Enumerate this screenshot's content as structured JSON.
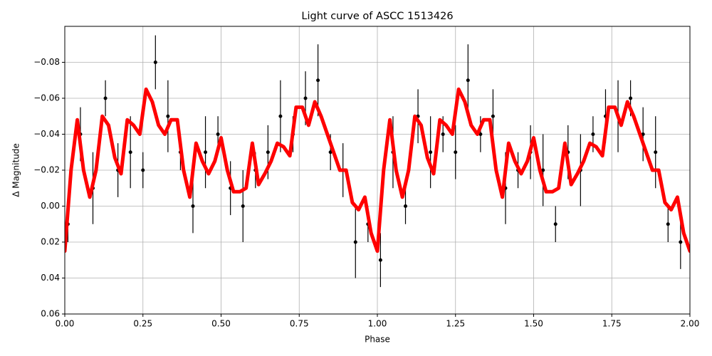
{
  "chart_data": {
    "type": "errorbar-line",
    "title": "Light curve of ASCC 1513426",
    "xlabel": "Phase",
    "ylabel": "Δ Magnitude",
    "xlim": [
      0,
      2
    ],
    "ylim": [
      0.06,
      -0.1
    ],
    "xticks": [
      {
        "value": 0,
        "label": "0.00"
      },
      {
        "value": 0.25,
        "label": "0.25"
      },
      {
        "value": 0.5,
        "label": "0.50"
      },
      {
        "value": 0.75,
        "label": "0.75"
      },
      {
        "value": 1,
        "label": "1.00"
      },
      {
        "value": 1.25,
        "label": "1.25"
      },
      {
        "value": 1.5,
        "label": "1.50"
      },
      {
        "value": 1.75,
        "label": "1.75"
      },
      {
        "value": 2,
        "label": "2.00"
      }
    ],
    "yticks": [
      {
        "value": -0.08,
        "label": "−0.08"
      },
      {
        "value": -0.06,
        "label": "−0.06"
      },
      {
        "value": -0.04,
        "label": "−0.04"
      },
      {
        "value": -0.02,
        "label": "−0.02"
      },
      {
        "value": 0,
        "label": "0.00"
      },
      {
        "value": 0.02,
        "label": "0.02"
      },
      {
        "value": 0.04,
        "label": "0.04"
      },
      {
        "value": 0.06,
        "label": "0.06"
      }
    ],
    "grid": true,
    "series": [
      {
        "kind": "errorbar",
        "color": "#000000",
        "x": [
          0.01,
          0.05,
          0.09,
          0.13,
          0.17,
          0.21,
          0.25,
          0.29,
          0.33,
          0.37,
          0.41,
          0.45,
          0.49,
          0.53,
          0.57,
          0.61,
          0.65,
          0.69,
          0.73,
          0.77,
          0.81,
          0.85,
          0.89,
          0.93,
          0.97,
          1.01,
          1.05,
          1.09,
          1.13,
          1.17,
          1.21,
          1.25,
          1.29,
          1.33,
          1.37,
          1.41,
          1.45,
          1.49,
          1.53,
          1.57,
          1.61,
          1.65,
          1.69,
          1.73,
          1.77,
          1.81,
          1.85,
          1.89,
          1.93,
          1.97
        ],
        "values": [
          0.01,
          -0.04,
          -0.01,
          -0.06,
          -0.02,
          -0.03,
          -0.02,
          -0.08,
          -0.05,
          -0.03,
          0,
          -0.03,
          -0.04,
          -0.01,
          0,
          -0.02,
          -0.03,
          -0.05,
          -0.04,
          -0.06,
          -0.07,
          -0.03,
          -0.02,
          0.02,
          0.01,
          0.03,
          -0.03,
          0,
          -0.05,
          -0.03,
          -0.04,
          -0.03,
          -0.07,
          -0.04,
          -0.05,
          -0.01,
          -0.02,
          -0.03,
          -0.02,
          0.01,
          -0.03,
          -0.02,
          -0.04,
          -0.05,
          -0.05,
          -0.06,
          -0.04,
          -0.03,
          0.01,
          0.02
        ],
        "errors": [
          0.01,
          0.015,
          0.02,
          0.01,
          0.015,
          0.02,
          0.01,
          0.015,
          0.02,
          0.01,
          0.015,
          0.02,
          0.01,
          0.015,
          0.02,
          0.01,
          0.015,
          0.02,
          0.01,
          0.015,
          0.02,
          0.01,
          0.015,
          0.02,
          0.01,
          0.015,
          0.02,
          0.01,
          0.015,
          0.02,
          0.01,
          0.015,
          0.02,
          0.01,
          0.015,
          0.02,
          0.01,
          0.015,
          0.02,
          0.01,
          0.015,
          0.02,
          0.01,
          0.015,
          0.02,
          0.01,
          0.015,
          0.02,
          0.01,
          0.015
        ]
      },
      {
        "kind": "line",
        "color": "#ff0000",
        "x": [
          0,
          0.02,
          0.04,
          0.06,
          0.08,
          0.1,
          0.12,
          0.14,
          0.16,
          0.18,
          0.2,
          0.22,
          0.24,
          0.26,
          0.28,
          0.3,
          0.32,
          0.34,
          0.36,
          0.38,
          0.4,
          0.42,
          0.44,
          0.46,
          0.48,
          0.5,
          0.52,
          0.54,
          0.56,
          0.58,
          0.6,
          0.62,
          0.64,
          0.66,
          0.68,
          0.7,
          0.72,
          0.74,
          0.76,
          0.78,
          0.8,
          0.82,
          0.84,
          0.86,
          0.88,
          0.9,
          0.92,
          0.94,
          0.96,
          0.98,
          1,
          1.02,
          1.04,
          1.06,
          1.08,
          1.1,
          1.12,
          1.14,
          1.16,
          1.18,
          1.2,
          1.22,
          1.24,
          1.26,
          1.28,
          1.3,
          1.32,
          1.34,
          1.36,
          1.38,
          1.4,
          1.42,
          1.44,
          1.46,
          1.48,
          1.5,
          1.52,
          1.54,
          1.56,
          1.58,
          1.6,
          1.62,
          1.64,
          1.66,
          1.68,
          1.7,
          1.72,
          1.74,
          1.76,
          1.78,
          1.8,
          1.82,
          1.84,
          1.86,
          1.88,
          1.9,
          1.92,
          1.94,
          1.96,
          1.98,
          2
        ],
        "values": [
          0.025,
          -0.02,
          -0.048,
          -0.02,
          -0.005,
          -0.02,
          -0.05,
          -0.045,
          -0.027,
          -0.018,
          -0.048,
          -0.045,
          -0.04,
          -0.065,
          -0.058,
          -0.045,
          -0.04,
          -0.048,
          -0.048,
          -0.02,
          -0.005,
          -0.035,
          -0.025,
          -0.018,
          -0.025,
          -0.038,
          -0.02,
          -0.008,
          -0.008,
          -0.01,
          -0.035,
          -0.012,
          -0.018,
          -0.025,
          -0.035,
          -0.033,
          -0.028,
          -0.055,
          -0.055,
          -0.045,
          -0.058,
          -0.05,
          -0.04,
          -0.03,
          -0.02,
          -0.02,
          -0.002,
          0.002,
          -0.005,
          0.015,
          0.025,
          -0.02,
          -0.048,
          -0.02,
          -0.005,
          -0.02,
          -0.05,
          -0.045,
          -0.027,
          -0.018,
          -0.048,
          -0.045,
          -0.04,
          -0.065,
          -0.058,
          -0.045,
          -0.04,
          -0.048,
          -0.048,
          -0.02,
          -0.005,
          -0.035,
          -0.025,
          -0.018,
          -0.025,
          -0.038,
          -0.02,
          -0.008,
          -0.008,
          -0.01,
          -0.035,
          -0.012,
          -0.018,
          -0.025,
          -0.035,
          -0.033,
          -0.028,
          -0.055,
          -0.055,
          -0.045,
          -0.058,
          -0.05,
          -0.04,
          -0.03,
          -0.02,
          -0.02,
          -0.002,
          0.002,
          -0.005,
          0.015,
          0.025
        ]
      }
    ]
  }
}
